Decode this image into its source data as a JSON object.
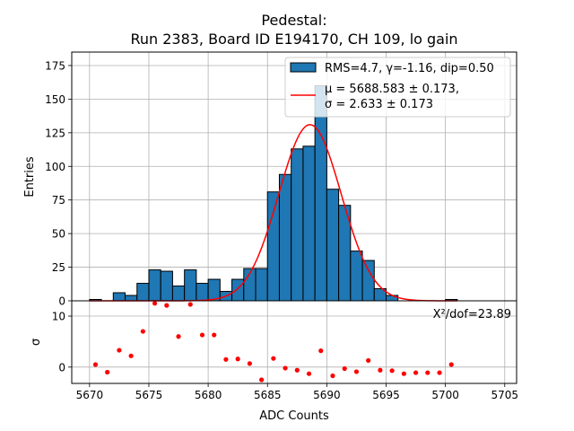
{
  "chart_data": {
    "type": "bar",
    "title": "Pedestal:",
    "subtitle": "Run 2383, Board ID E194170, CH 109, lo gain",
    "xlabel": "ADC Counts",
    "ylabel_top": "Entries",
    "ylabel_bottom": "σ",
    "xlim": [
      5668.5,
      5706
    ],
    "ylim_top": [
      0,
      185
    ],
    "ylim_bottom": [
      -3.2,
      13
    ],
    "x_ticks": [
      5670,
      5675,
      5680,
      5685,
      5690,
      5695,
      5700,
      5705
    ],
    "y_ticks_top": [
      0,
      25,
      50,
      75,
      100,
      125,
      150,
      175
    ],
    "y_ticks_bottom": [
      0,
      10
    ],
    "grid": true,
    "bins": {
      "start": 5670,
      "width": 1,
      "values": [
        1,
        0,
        6,
        4,
        13,
        23,
        22,
        11,
        23,
        13,
        16,
        7,
        16,
        24,
        24,
        81,
        94,
        113,
        115,
        160,
        83,
        71,
        37,
        30,
        9,
        4,
        0,
        0,
        0,
        0,
        1
      ],
      "color": "#1f77b4",
      "edge_color": "#000000"
    },
    "fit": {
      "mu": 5688.583,
      "sigma": 2.633,
      "amplitude": 131,
      "color": "#ff0000"
    },
    "residuals": {
      "x": [
        5670.5,
        5671.5,
        5672.5,
        5673.5,
        5674.5,
        5675.5,
        5676.5,
        5677.5,
        5678.5,
        5679.5,
        5680.5,
        5681.5,
        5682.5,
        5683.5,
        5684.5,
        5685.5,
        5686.5,
        5687.5,
        5688.5,
        5689.5,
        5690.5,
        5691.5,
        5692.5,
        5693.5,
        5694.5,
        5695.5,
        5696.5,
        5697.5,
        5698.5,
        5699.5,
        5700.5
      ],
      "values": [
        0.5,
        -1.0,
        3.3,
        2.2,
        7.0,
        12.5,
        12.1,
        6.0,
        12.3,
        6.3,
        6.3,
        1.5,
        1.6,
        0.7,
        -2.5,
        1.7,
        -0.2,
        -0.6,
        -1.3,
        3.2,
        -1.7,
        -0.3,
        -0.9,
        1.3,
        -0.6,
        -0.7,
        -1.3,
        -1.1,
        -1.1,
        -1.1,
        0.5
      ],
      "color": "#ff0000"
    },
    "legend": {
      "position": "top-right",
      "entries": [
        {
          "kind": "patch",
          "label": "RMS=4.7, γ=-1.16, dip=0.50"
        },
        {
          "kind": "line",
          "label": "μ = 5688.583 ± 0.173,",
          "label2": "σ = 2.633 ± 0.173"
        }
      ]
    },
    "annotation": "X²/dof=23.89"
  }
}
